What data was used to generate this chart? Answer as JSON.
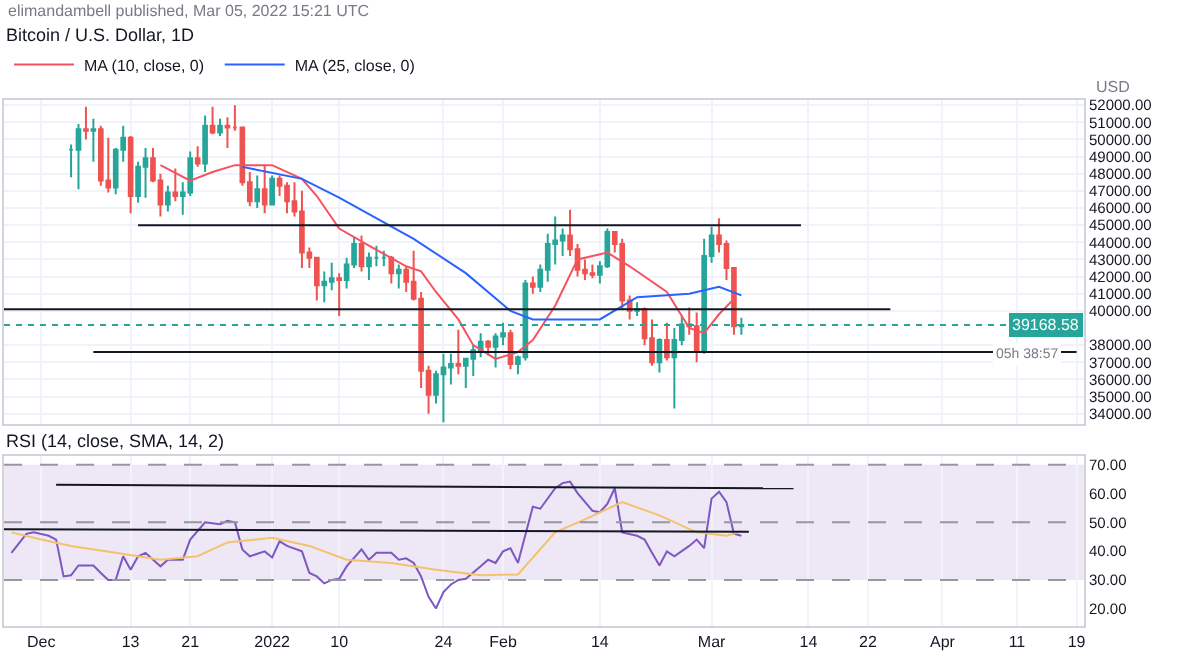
{
  "chart_data": [
    {
      "type": "candlestick",
      "title": "Bitcoin / U.S. Dollar, 1D",
      "annotations": [
        "elimandambell published, Mar 05, 2022 15:21 UTC",
        "USD",
        {
          "text": "05h 38:57",
          "x": "2022-04-17",
          "y": 39168.58
        }
      ],
      "x": [
        "2021-12-05",
        "2021-12-06",
        "2021-12-07",
        "2021-12-08",
        "2021-12-09",
        "2021-12-10",
        "2021-12-11",
        "2021-12-12",
        "2021-12-13",
        "2021-12-14",
        "2021-12-15",
        "2021-12-16",
        "2021-12-17",
        "2021-12-18",
        "2021-12-19",
        "2021-12-20",
        "2021-12-21",
        "2021-12-22",
        "2021-12-23",
        "2021-12-24",
        "2021-12-25",
        "2021-12-26",
        "2021-12-27",
        "2021-12-28",
        "2021-12-29",
        "2021-12-30",
        "2021-12-31",
        "2022-01-01",
        "2022-01-02",
        "2022-01-03",
        "2022-01-04",
        "2022-01-05",
        "2022-01-06",
        "2022-01-07",
        "2022-01-08",
        "2022-01-09",
        "2022-01-10",
        "2022-01-11",
        "2022-01-12",
        "2022-01-13",
        "2022-01-14",
        "2022-01-15",
        "2022-01-16",
        "2022-01-17",
        "2022-01-18",
        "2022-01-19",
        "2022-01-20",
        "2022-01-21",
        "2022-01-22",
        "2022-01-23",
        "2022-01-24",
        "2022-01-25",
        "2022-01-26",
        "2022-01-27",
        "2022-01-28",
        "2022-01-29",
        "2022-01-30",
        "2022-01-31",
        "2022-02-01",
        "2022-02-02",
        "2022-02-03",
        "2022-02-04",
        "2022-02-05",
        "2022-02-06",
        "2022-02-07",
        "2022-02-08",
        "2022-02-09",
        "2022-02-10",
        "2022-02-11",
        "2022-02-12",
        "2022-02-13",
        "2022-02-14",
        "2022-02-15",
        "2022-02-16",
        "2022-02-17",
        "2022-02-18",
        "2022-02-19",
        "2022-02-20",
        "2022-02-21",
        "2022-02-22",
        "2022-02-23",
        "2022-02-24",
        "2022-02-25",
        "2022-02-26",
        "2022-02-27",
        "2022-02-28",
        "2022-03-01",
        "2022-03-02",
        "2022-03-03",
        "2022-03-04",
        "2022-03-05"
      ],
      "ohlc": [
        [
          49400,
          49700,
          47800,
          49400
        ],
        [
          49400,
          50900,
          47100,
          50600
        ],
        [
          50600,
          51900,
          50000,
          50500
        ],
        [
          50500,
          51200,
          48700,
          50600
        ],
        [
          50600,
          50800,
          47300,
          47600
        ],
        [
          47600,
          50100,
          46900,
          47200
        ],
        [
          47200,
          49500,
          46800,
          49400
        ],
        [
          49400,
          50800,
          48700,
          50100
        ],
        [
          50100,
          50200,
          45700,
          46700
        ],
        [
          46700,
          48700,
          46300,
          48400
        ],
        [
          48400,
          49500,
          46600,
          48900
        ],
        [
          48900,
          49500,
          47500,
          47600
        ],
        [
          47600,
          48000,
          45500,
          46200
        ],
        [
          46200,
          47300,
          45800,
          46900
        ],
        [
          46900,
          48300,
          46400,
          46700
        ],
        [
          46700,
          47500,
          45600,
          46900
        ],
        [
          46900,
          49300,
          46700,
          48900
        ],
        [
          48900,
          49600,
          48400,
          48600
        ],
        [
          48600,
          51400,
          48100,
          50800
        ],
        [
          50800,
          51900,
          50300,
          50400
        ],
        [
          50400,
          51200,
          50200,
          50800
        ],
        [
          50800,
          51300,
          49500,
          50700
        ],
        [
          50700,
          52000,
          50500,
          50700
        ],
        [
          50700,
          50700,
          47300,
          47500
        ],
        [
          47500,
          48100,
          46100,
          46400
        ],
        [
          46400,
          47900,
          46000,
          47100
        ],
        [
          47100,
          48500,
          45700,
          46200
        ],
        [
          46200,
          47900,
          46200,
          47700
        ],
        [
          47700,
          47900,
          46700,
          47300
        ],
        [
          47300,
          47500,
          45700,
          46400
        ],
        [
          46400,
          47500,
          45500,
          45800
        ],
        [
          45800,
          47000,
          42500,
          43400
        ],
        [
          43400,
          43700,
          42500,
          43100
        ],
        [
          43100,
          43100,
          40600,
          41500
        ],
        [
          41500,
          42300,
          40500,
          41700
        ],
        [
          41700,
          42800,
          41200,
          41900
        ],
        [
          41900,
          42200,
          39700,
          41800
        ],
        [
          41800,
          43100,
          41300,
          42700
        ],
        [
          42700,
          44300,
          42500,
          43900
        ],
        [
          43900,
          44400,
          42300,
          42600
        ],
        [
          42600,
          43400,
          41800,
          43100
        ],
        [
          43100,
          43800,
          42600,
          43100
        ],
        [
          43100,
          43500,
          42600,
          43100
        ],
        [
          43100,
          43200,
          41600,
          42200
        ],
        [
          42200,
          42700,
          41300,
          42400
        ],
        [
          42400,
          42600,
          41100,
          41700
        ],
        [
          41700,
          43500,
          40600,
          40700
        ],
        [
          40700,
          41100,
          35500,
          36500
        ],
        [
          36500,
          36800,
          34000,
          35100
        ],
        [
          35100,
          36500,
          34600,
          36300
        ],
        [
          36300,
          37500,
          33500,
          36700
        ],
        [
          36700,
          37500,
          35700,
          36900
        ],
        [
          36900,
          38900,
          36300,
          36800
        ],
        [
          36800,
          37200,
          35500,
          37200
        ],
        [
          37200,
          38000,
          36200,
          37700
        ],
        [
          37700,
          38700,
          37300,
          38200
        ],
        [
          38200,
          38300,
          37400,
          37900
        ],
        [
          37900,
          38700,
          36700,
          38500
        ],
        [
          38500,
          39300,
          38000,
          38700
        ],
        [
          38700,
          38900,
          36600,
          36900
        ],
        [
          36900,
          37400,
          36300,
          37300
        ],
        [
          37300,
          41800,
          37100,
          41600
        ],
        [
          41600,
          42000,
          41000,
          41400
        ],
        [
          41400,
          42700,
          41100,
          42400
        ],
        [
          42400,
          44500,
          41700,
          43900
        ],
        [
          43900,
          45500,
          42700,
          44100
        ],
        [
          44100,
          44800,
          43200,
          44400
        ],
        [
          44400,
          45900,
          43200,
          43600
        ],
        [
          43600,
          43900,
          42000,
          42400
        ],
        [
          42400,
          43000,
          41800,
          42200
        ],
        [
          42200,
          42700,
          41900,
          42100
        ],
        [
          42100,
          42900,
          41600,
          42600
        ],
        [
          42600,
          44800,
          42500,
          44600
        ],
        [
          44600,
          44600,
          43400,
          43900
        ],
        [
          43900,
          44200,
          40100,
          40600
        ],
        [
          40600,
          40900,
          39500,
          40000
        ],
        [
          40000,
          40500,
          39700,
          40100
        ],
        [
          40100,
          40200,
          38000,
          38400
        ],
        [
          38400,
          39500,
          36800,
          37000
        ],
        [
          37000,
          38400,
          36400,
          38300
        ],
        [
          38300,
          39300,
          37100,
          37300
        ],
        [
          37300,
          39000,
          34300,
          38300
        ],
        [
          38300,
          39700,
          38000,
          39200
        ],
        [
          39200,
          40200,
          38600,
          39100
        ],
        [
          39100,
          39900,
          37000,
          37700
        ],
        [
          37700,
          44200,
          37500,
          43200
        ],
        [
          43200,
          44900,
          42800,
          44400
        ],
        [
          44400,
          45400,
          43400,
          43900
        ],
        [
          43900,
          44100,
          41800,
          42500
        ],
        [
          42500,
          42500,
          38600,
          39100
        ],
        [
          39100,
          39600,
          38600,
          39168.58
        ]
      ],
      "series": [
        {
          "type": "line",
          "name": "MA (10, close, 0)",
          "color": "#f7525f",
          "x": [
            "2021-12-17",
            "2021-12-21",
            "2021-12-24",
            "2021-12-27",
            "2022-01-01",
            "2022-01-05",
            "2022-01-07",
            "2022-01-10",
            "2022-01-14",
            "2022-01-19",
            "2022-01-21",
            "2022-01-23",
            "2022-01-26",
            "2022-01-28",
            "2022-01-31",
            "2022-02-03",
            "2022-02-05",
            "2022-02-08",
            "2022-02-11",
            "2022-02-15",
            "2022-02-18",
            "2022-02-23",
            "2022-02-26",
            "2022-02-28",
            "2022-03-02",
            "2022-03-04"
          ],
          "values": [
            48500,
            47600,
            48100,
            48500,
            48500,
            47700,
            46700,
            44800,
            43800,
            42600,
            42300,
            41100,
            39500,
            38000,
            37200,
            37600,
            38300,
            40300,
            43000,
            43400,
            42600,
            41100,
            39000,
            38700,
            39800,
            40700
          ]
        },
        {
          "type": "line",
          "name": "MA (25, close, 0)",
          "color": "#2962ff",
          "x": [
            "2021-12-28",
            "2022-01-05",
            "2022-01-10",
            "2022-01-20",
            "2022-01-27",
            "2022-02-02",
            "2022-02-05",
            "2022-02-14",
            "2022-02-19",
            "2022-02-26",
            "2022-03-02",
            "2022-03-05"
          ],
          "values": [
            48400,
            47700,
            46600,
            44200,
            42200,
            40000,
            39500,
            39500,
            40800,
            41000,
            41400,
            40900
          ]
        },
        {
          "type": "line",
          "color": "#131722",
          "x": [
            "2021-12-14",
            "2022-03-13"
          ],
          "values": [
            45000,
            45000
          ]
        },
        {
          "type": "line",
          "color": "#131722",
          "x": [
            "2021-11-26",
            "2022-03-25"
          ],
          "values": [
            40100,
            40100
          ]
        },
        {
          "type": "line",
          "color": "#131722",
          "x": [
            "2021-12-08",
            "2022-04-19"
          ],
          "values": [
            37600,
            37600
          ]
        }
      ],
      "ref_lines": [
        {
          "axis": "y",
          "value": 39168.58,
          "label": "39168.58",
          "color": "#26a69a",
          "line_style": "dotted"
        }
      ],
      "xlim": [
        "2021-11-26",
        "2022-04-20"
      ],
      "xticks": [
        {
          "value": "2021-12-01",
          "label": null
        },
        {
          "value": "2021-12-13",
          "label": null
        },
        {
          "value": "2021-12-21",
          "label": null
        },
        {
          "value": "2022-01-01",
          "label": null
        },
        {
          "value": "2022-01-10",
          "label": null
        },
        {
          "value": "2022-01-24",
          "label": null
        },
        {
          "value": "2022-02-01",
          "label": null
        },
        {
          "value": "2022-02-14",
          "label": null
        },
        {
          "value": "2022-03-01",
          "label": null
        },
        {
          "value": "2022-03-14",
          "label": null
        },
        {
          "value": "2022-03-22",
          "label": null
        },
        {
          "value": "2022-04-01",
          "label": null
        },
        {
          "value": "2022-04-11",
          "label": null
        },
        {
          "value": "2022-04-19",
          "label": null
        }
      ],
      "ylim": [
        33400,
        52300
      ],
      "yticks": [
        {
          "value": 34000,
          "label": "34000.00"
        },
        {
          "value": 35000,
          "label": "35000.00"
        },
        {
          "value": 36000,
          "label": "36000.00"
        },
        {
          "value": 37000,
          "label": "37000.00"
        },
        {
          "value": 38000,
          "label": "38000.00"
        },
        {
          "value": 40000,
          "label": "40000.00"
        },
        {
          "value": 41000,
          "label": "41000.00"
        },
        {
          "value": 42000,
          "label": "42000.00"
        },
        {
          "value": 43000,
          "label": "43000.00"
        },
        {
          "value": 44000,
          "label": "44000.00"
        },
        {
          "value": 45000,
          "label": "45000.00"
        },
        {
          "value": 46000,
          "label": "46000.00"
        },
        {
          "value": 47000,
          "label": "47000.00"
        },
        {
          "value": 48000,
          "label": "48000.00"
        },
        {
          "value": 49000,
          "label": "49000.00"
        },
        {
          "value": 50000,
          "label": "50000.00"
        },
        {
          "value": 51000,
          "label": "51000.00"
        },
        {
          "value": 52000,
          "label": "52000.00"
        }
      ],
      "grid": true,
      "legend": "top left",
      "tick_labels": "y"
    },
    {
      "type": "line",
      "title": "RSI (14, close, SMA, 14, 2)",
      "series": [
        {
          "color": "#7e57c2",
          "x": [
            "2021-11-27",
            "2021-11-29",
            "2021-11-30",
            "2021-12-02",
            "2021-12-03",
            "2021-12-04",
            "2021-12-05",
            "2021-12-06",
            "2021-12-08",
            "2021-12-09",
            "2021-12-10",
            "2021-12-11",
            "2021-12-12",
            "2021-12-13",
            "2021-12-14",
            "2021-12-15",
            "2021-12-17",
            "2021-12-18",
            "2021-12-20",
            "2021-12-21",
            "2021-12-23",
            "2021-12-25",
            "2021-12-26",
            "2021-12-27",
            "2021-12-28",
            "2021-12-29",
            "2021-12-31",
            "2022-01-01",
            "2022-01-02",
            "2022-01-03",
            "2022-01-05",
            "2022-01-06",
            "2022-01-07",
            "2022-01-08",
            "2022-01-09",
            "2022-01-10",
            "2022-01-11",
            "2022-01-13",
            "2022-01-14",
            "2022-01-15",
            "2022-01-17",
            "2022-01-18",
            "2022-01-19",
            "2022-01-20",
            "2022-01-21",
            "2022-01-22",
            "2022-01-23",
            "2022-01-24",
            "2022-01-25",
            "2022-01-26",
            "2022-01-27",
            "2022-01-29",
            "2022-01-30",
            "2022-01-31",
            "2022-02-01",
            "2022-02-02",
            "2022-02-03",
            "2022-02-05",
            "2022-02-06",
            "2022-02-08",
            "2022-02-09",
            "2022-02-10",
            "2022-02-11",
            "2022-02-13",
            "2022-02-14",
            "2022-02-15",
            "2022-02-16",
            "2022-02-17",
            "2022-02-19",
            "2022-02-20",
            "2022-02-21",
            "2022-02-22",
            "2022-02-23",
            "2022-02-24",
            "2022-02-26",
            "2022-02-27",
            "2022-02-28",
            "2022-03-01",
            "2022-03-02",
            "2022-03-03",
            "2022-03-04",
            "2022-03-05"
          ],
          "values": [
            39.4,
            46,
            46.5,
            45.3,
            44,
            31.2,
            31.6,
            35,
            35,
            32.4,
            30,
            30,
            38.2,
            33.5,
            38.2,
            39.4,
            34.7,
            37,
            37,
            44,
            50,
            49.3,
            50.5,
            50,
            40.6,
            38.2,
            39.9,
            37.8,
            43.4,
            41.8,
            39.9,
            32.4,
            31.2,
            28.8,
            30,
            30.4,
            34.7,
            40.6,
            37,
            39.4,
            39.4,
            37,
            37.5,
            35.9,
            31.2,
            24.1,
            20.1,
            25.8,
            28.4,
            30,
            30.4,
            34.7,
            37,
            35.9,
            39.9,
            41,
            35.9,
            55.4,
            54.7,
            61.8,
            63.6,
            64.1,
            60.1,
            54,
            53.5,
            56.4,
            61.8,
            46.5,
            45.3,
            44,
            39.4,
            35,
            39.9,
            38.2,
            41.8,
            44,
            41,
            58.2,
            60.6,
            57,
            46,
            45.3
          ]
        },
        {
          "color": "#f5c26b",
          "x": [
            "2021-11-27",
            "2021-12-01",
            "2021-12-05",
            "2021-12-11",
            "2021-12-17",
            "2021-12-22",
            "2021-12-26",
            "2022-01-01",
            "2022-01-06",
            "2022-01-11",
            "2022-01-17",
            "2022-01-23",
            "2022-01-29",
            "2022-02-03",
            "2022-02-08",
            "2022-02-12",
            "2022-02-17",
            "2022-02-22",
            "2022-02-27",
            "2022-03-03",
            "2022-03-05"
          ],
          "values": [
            46.5,
            44,
            41.8,
            39.4,
            37,
            38.2,
            43,
            44.6,
            41.8,
            37,
            35.9,
            33.5,
            31.6,
            31.9,
            46.5,
            51,
            57,
            52.4,
            46.5,
            45.3,
            46.9
          ]
        },
        {
          "color": "#131722",
          "x": [
            "2021-12-03",
            "2022-03-12"
          ],
          "values": [
            63,
            61.8
          ]
        },
        {
          "color": "#131722",
          "x": [
            "2021-11-26",
            "2022-03-06"
          ],
          "values": [
            47.6,
            46.7
          ]
        }
      ],
      "bands": [
        {
          "axis": "y",
          "from": 30,
          "to": 70,
          "color": "#ede7f6"
        }
      ],
      "ref_lines": [
        {
          "axis": "y",
          "value": 70,
          "color": "#9598a1",
          "line_style": "dashed"
        },
        {
          "axis": "y",
          "value": 50,
          "color": "#9598a1",
          "line_style": "dashed"
        },
        {
          "axis": "y",
          "value": 30,
          "color": "#9598a1",
          "line_style": "dashed"
        }
      ],
      "xlim": [
        "2021-11-26",
        "2022-04-20"
      ],
      "xticks": [
        {
          "value": "2021-12-01",
          "label": "Dec"
        },
        {
          "value": "2021-12-13",
          "label": "13"
        },
        {
          "value": "2021-12-21",
          "label": "21"
        },
        {
          "value": "2022-01-01",
          "label": "2022"
        },
        {
          "value": "2022-01-10",
          "label": "10"
        },
        {
          "value": "2022-01-24",
          "label": "24"
        },
        {
          "value": "2022-02-01",
          "label": "Feb"
        },
        {
          "value": "2022-02-14",
          "label": "14"
        },
        {
          "value": "2022-03-01",
          "label": "Mar"
        },
        {
          "value": "2022-03-14",
          "label": "14"
        },
        {
          "value": "2022-03-22",
          "label": "22"
        },
        {
          "value": "2022-04-01",
          "label": "Apr"
        },
        {
          "value": "2022-04-11",
          "label": "11"
        },
        {
          "value": "2022-04-19",
          "label": "19"
        }
      ],
      "ylim": [
        14,
        73
      ],
      "yticks": [
        {
          "value": 20,
          "label": "20.00"
        },
        {
          "value": 30,
          "label": "30.00"
        },
        {
          "value": 40,
          "label": "40.00"
        },
        {
          "value": 50,
          "label": "50.00"
        },
        {
          "value": 60,
          "label": "60.00"
        },
        {
          "value": 70,
          "label": "70.00"
        }
      ],
      "grid": "x",
      "legend": false
    }
  ]
}
